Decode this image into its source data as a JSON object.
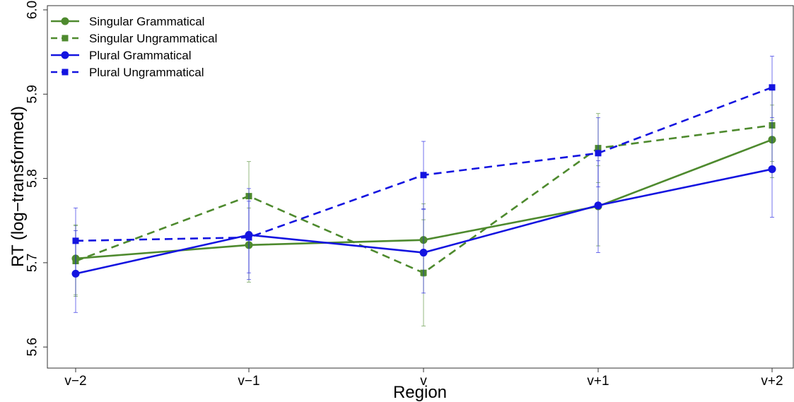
{
  "chart_data": {
    "type": "line",
    "xlabel": "Region",
    "ylabel": "RT (log−transformed)",
    "categories": [
      "v−2",
      "v−1",
      "v",
      "v+1",
      "v+2"
    ],
    "ylim": [
      5.575,
      6.005
    ],
    "yticks": [
      "5.6",
      "5.7",
      "5.8",
      "5.9",
      "6.0"
    ],
    "ytick_values": [
      5.6,
      5.7,
      5.8,
      5.9,
      6.0
    ],
    "grid": false,
    "legend_position": "top-left",
    "series": [
      {
        "name": "Singular Grammatical",
        "color": "#4e8a2e",
        "line": "solid",
        "marker": "circle",
        "values": [
          5.705,
          5.721,
          5.727,
          5.767,
          5.846
        ],
        "err_low": [
          5.662,
          5.677,
          5.684,
          5.72,
          5.801
        ],
        "err_high": [
          5.745,
          5.765,
          5.77,
          5.815,
          5.887
        ]
      },
      {
        "name": "Singular Ungrammatical",
        "color": "#4e8a2e",
        "line": "dashed",
        "marker": "square",
        "values": [
          5.702,
          5.779,
          5.688,
          5.836,
          5.863
        ],
        "err_low": [
          5.66,
          5.737,
          5.625,
          5.795,
          5.82
        ],
        "err_high": [
          5.744,
          5.82,
          5.751,
          5.877,
          5.905
        ]
      },
      {
        "name": "Plural Grammatical",
        "color": "#1414e0",
        "line": "solid",
        "marker": "circle",
        "values": [
          5.687,
          5.733,
          5.712,
          5.768,
          5.811
        ],
        "err_low": [
          5.641,
          5.68,
          5.664,
          5.712,
          5.754
        ],
        "err_high": [
          5.738,
          5.788,
          5.763,
          5.821,
          5.869
        ]
      },
      {
        "name": "Plural Ungrammatical",
        "color": "#1414e0",
        "line": "dashed",
        "marker": "square",
        "values": [
          5.726,
          5.73,
          5.804,
          5.83,
          5.908
        ],
        "err_low": [
          5.686,
          5.688,
          5.764,
          5.79,
          5.872
        ],
        "err_high": [
          5.765,
          5.773,
          5.844,
          5.872,
          5.945
        ]
      }
    ]
  }
}
